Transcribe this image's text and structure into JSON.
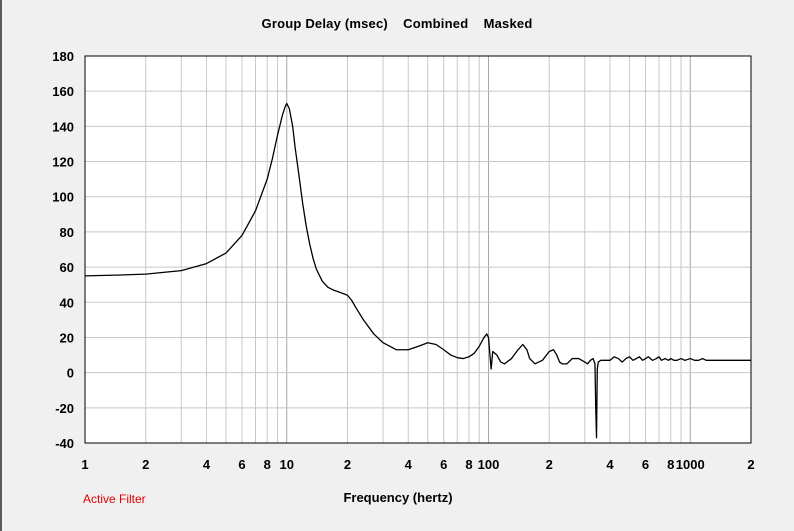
{
  "status_text": "Active Filter",
  "colors": {
    "background": "#f0f0f0",
    "plot_area": "#ffffff",
    "grid": "#c8c8c8",
    "line": "#000000",
    "status": "#e00000"
  },
  "chart_data": {
    "type": "line",
    "title": "Group Delay (msec)    Combined    Masked",
    "xlabel": "Frequency (hertz)",
    "ylabel": "",
    "x_scale": "log",
    "xlim": [
      1,
      2000
    ],
    "ylim": [
      -40,
      180
    ],
    "grid": true,
    "y_ticks": [
      180,
      160,
      140,
      120,
      100,
      80,
      60,
      40,
      20,
      0,
      -20,
      -40
    ],
    "y_tick_labels": [
      "180",
      "160",
      "140",
      "120",
      "100",
      "80",
      "60",
      "40",
      "20",
      "0",
      "-20",
      "-40"
    ],
    "x_ticks": [
      1,
      2,
      4,
      6,
      8,
      10,
      20,
      40,
      60,
      80,
      100,
      200,
      400,
      600,
      800,
      1000,
      2000
    ],
    "x_tick_labels": [
      "1",
      "2",
      "4",
      "6",
      "8",
      "10",
      "2",
      "4",
      "6",
      "8",
      "100",
      "2",
      "4",
      "6",
      "8",
      "1000",
      "2"
    ],
    "series": [
      {
        "x": [
          1,
          1.5,
          2,
          3,
          4,
          5,
          6,
          7,
          8,
          8.5,
          9,
          9.5,
          9.8,
          10,
          10.3,
          10.7,
          11,
          11.5,
          12,
          12.5,
          13,
          13.5,
          14,
          15,
          16,
          17,
          18,
          19,
          20,
          21,
          22,
          24,
          27,
          30,
          35,
          40,
          45,
          50,
          55,
          60,
          65,
          70,
          75,
          80,
          85,
          90,
          95,
          98,
          100,
          102,
          103,
          105,
          110,
          115,
          120,
          130,
          140,
          148,
          155,
          160,
          170,
          185,
          200,
          210,
          218,
          225,
          232,
          245,
          260,
          280,
          300,
          310,
          320,
          330,
          337,
          340,
          343,
          346,
          350,
          360,
          380,
          400,
          420,
          440,
          460,
          480,
          500,
          520,
          540,
          560,
          580,
          600,
          620,
          650,
          680,
          700,
          720,
          750,
          780,
          800,
          830,
          860,
          900,
          940,
          1000,
          1050,
          1100,
          1150,
          1200,
          1300,
          1400,
          1500,
          1600,
          1700,
          1800,
          1900,
          2000
        ],
        "y": [
          55,
          55.5,
          56,
          58,
          62,
          68,
          78,
          92,
          110,
          122,
          135,
          146,
          151,
          153,
          150,
          140,
          128,
          112,
          96,
          83,
          73,
          65,
          59,
          52,
          48.5,
          47,
          46,
          45,
          44,
          41,
          37,
          30,
          22,
          17,
          13,
          13,
          15,
          17,
          16,
          13,
          10,
          8.5,
          8,
          9,
          11,
          15,
          20,
          22,
          20,
          8,
          2,
          12,
          10,
          6,
          5,
          8,
          13,
          16,
          13,
          8,
          5,
          7,
          12,
          13,
          10,
          6,
          5,
          5,
          8,
          8,
          6,
          5,
          7,
          8,
          5,
          -20,
          -37,
          2,
          6,
          7,
          7,
          7,
          9,
          8,
          6,
          8,
          9,
          7,
          8,
          9,
          7,
          8,
          9,
          7,
          8,
          9,
          7,
          8,
          7,
          8,
          7,
          7,
          8,
          7,
          8,
          7,
          7,
          8,
          7,
          7,
          7,
          7,
          7,
          7,
          7,
          7,
          7
        ]
      }
    ]
  }
}
